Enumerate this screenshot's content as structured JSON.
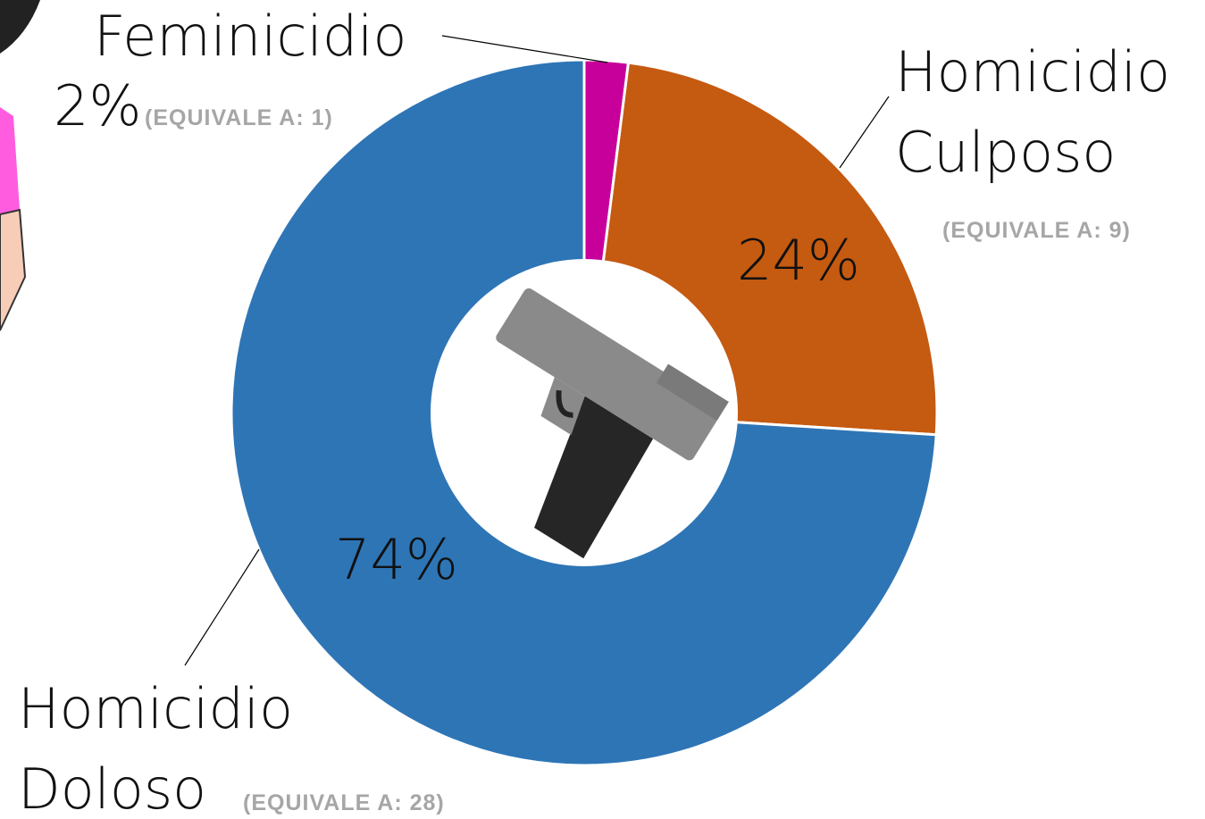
{
  "chart_data": {
    "type": "pie",
    "donut": true,
    "categories": [
      "Feminicidio",
      "Homicidio Culposo",
      "Homicidio Doloso"
    ],
    "values": [
      2,
      24,
      74
    ],
    "value_labels": [
      "2%",
      "24%",
      "74%"
    ],
    "equivalents": [
      "(EQUIVALE A: 1)",
      "(EQUIVALE A: 9)",
      "(EQUIVALE A: 28)"
    ],
    "colors": [
      "#c8009b",
      "#c55a11",
      "#2e75b6"
    ]
  }
}
